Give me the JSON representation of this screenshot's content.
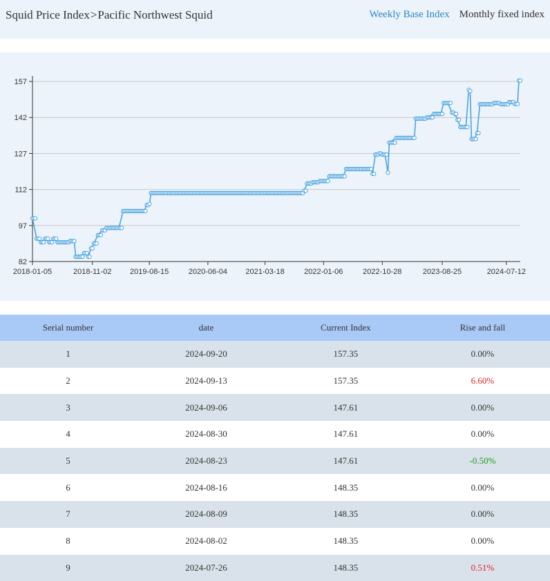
{
  "breadcrumb": {
    "root": "Squid Price Index",
    "separator": ">",
    "current": "Pacific Northwest Squid"
  },
  "tabs": [
    {
      "label": "Weekly Base Index",
      "active": true
    },
    {
      "label": "Monthly fixed index",
      "active": false
    }
  ],
  "colors": {
    "accent": "#2a87c8",
    "line": "#4aa3de",
    "up": "#e01e1e",
    "down": "#189a18",
    "header_bg": "#a9c9f7",
    "stripe": "#d9e2ea"
  },
  "chart_data": {
    "type": "line",
    "title": "",
    "xlabel": "",
    "ylabel": "",
    "ylim": [
      82,
      157
    ],
    "y_ticks": [
      "82",
      "97",
      "112",
      "127",
      "142",
      "157"
    ],
    "x_ticks": [
      "2018-01-05",
      "2018-11-02",
      "2019-08-15",
      "2020-06-04",
      "2021-03-18",
      "2022-01-06",
      "2022-10-28",
      "2023-08-25",
      "2024-07-12"
    ],
    "grid": true,
    "series": [
      {
        "points": [
          [
            "2018-01-05",
            100.0
          ],
          [
            "2018-01-26",
            91.5
          ],
          [
            "2018-02-16",
            90.0
          ],
          [
            "2018-03-09",
            91.5
          ],
          [
            "2018-03-30",
            90.0
          ],
          [
            "2018-04-20",
            91.5
          ],
          [
            "2018-05-11",
            90.0
          ],
          [
            "2018-06-01",
            90.0
          ],
          [
            "2018-06-22",
            90.0
          ],
          [
            "2018-07-13",
            90.5
          ],
          [
            "2018-08-03",
            90.5
          ],
          [
            "2018-08-10",
            84.0
          ],
          [
            "2018-08-31",
            84.0
          ],
          [
            "2018-09-21",
            85.5
          ],
          [
            "2018-10-12",
            84.0
          ],
          [
            "2018-10-26",
            87.5
          ],
          [
            "2018-11-09",
            89.5
          ],
          [
            "2018-11-30",
            93.0
          ],
          [
            "2018-12-21",
            95.0
          ],
          [
            "2019-01-11",
            96.0
          ],
          [
            "2019-02-01",
            96.0
          ],
          [
            "2019-02-22",
            96.0
          ],
          [
            "2019-03-15",
            96.0
          ],
          [
            "2019-04-05",
            103.0
          ],
          [
            "2019-05-10",
            103.0
          ],
          [
            "2019-06-14",
            103.0
          ],
          [
            "2019-07-19",
            103.0
          ],
          [
            "2019-08-02",
            105.5
          ],
          [
            "2019-08-16",
            106.0
          ],
          [
            "2019-08-23",
            110.5
          ],
          [
            "2020-03-06",
            110.5
          ],
          [
            "2020-10-09",
            110.5
          ],
          [
            "2021-05-14",
            110.5
          ],
          [
            "2021-09-17",
            110.5
          ],
          [
            "2021-10-01",
            111.5
          ],
          [
            "2021-10-15",
            114.5
          ],
          [
            "2021-11-12",
            115.0
          ],
          [
            "2021-12-17",
            115.5
          ],
          [
            "2022-01-21",
            115.5
          ],
          [
            "2022-02-04",
            117.5
          ],
          [
            "2022-03-11",
            117.5
          ],
          [
            "2022-04-15",
            117.5
          ],
          [
            "2022-04-29",
            120.5
          ],
          [
            "2022-06-17",
            120.5
          ],
          [
            "2022-08-05",
            120.5
          ],
          [
            "2022-09-02",
            120.5
          ],
          [
            "2022-09-09",
            118.5
          ],
          [
            "2022-09-23",
            126.5
          ],
          [
            "2022-10-14",
            127.0
          ],
          [
            "2022-10-28",
            126.5
          ],
          [
            "2022-11-11",
            126.5
          ],
          [
            "2022-11-25",
            119.0
          ],
          [
            "2022-12-02",
            131.5
          ],
          [
            "2023-01-06",
            133.5
          ],
          [
            "2023-02-10",
            133.5
          ],
          [
            "2023-03-17",
            133.5
          ],
          [
            "2023-04-07",
            133.5
          ],
          [
            "2023-04-14",
            141.5
          ],
          [
            "2023-05-19",
            141.5
          ],
          [
            "2023-06-09",
            142.0
          ],
          [
            "2023-07-14",
            143.5
          ],
          [
            "2023-08-18",
            143.5
          ],
          [
            "2023-09-01",
            148.0
          ],
          [
            "2023-09-22",
            148.0
          ],
          [
            "2023-10-13",
            144.0
          ],
          [
            "2023-10-27",
            143.5
          ],
          [
            "2023-11-10",
            141.0
          ],
          [
            "2023-11-24",
            138.0
          ],
          [
            "2023-12-22",
            138.0
          ],
          [
            "2024-01-05",
            153.5
          ],
          [
            "2024-01-12",
            153.0
          ],
          [
            "2024-01-19",
            133.0
          ],
          [
            "2024-02-02",
            133.0
          ],
          [
            "2024-02-16",
            135.5
          ],
          [
            "2024-03-01",
            147.5
          ],
          [
            "2024-04-05",
            147.5
          ],
          [
            "2024-05-10",
            148.0
          ],
          [
            "2024-06-14",
            147.5
          ],
          [
            "2024-07-26",
            148.35
          ],
          [
            "2024-08-16",
            148.35
          ],
          [
            "2024-08-23",
            147.61
          ],
          [
            "2024-09-06",
            147.61
          ],
          [
            "2024-09-13",
            157.35
          ],
          [
            "2024-09-20",
            157.35
          ]
        ]
      }
    ]
  },
  "table": {
    "headers": [
      "Serial number",
      "date",
      "Current Index",
      "Rise and fall"
    ],
    "rows": [
      {
        "serial": "1",
        "date": "2024-09-20",
        "index": "157.35",
        "change": "0.00%",
        "trend": "flat"
      },
      {
        "serial": "2",
        "date": "2024-09-13",
        "index": "157.35",
        "change": "6.60%",
        "trend": "up"
      },
      {
        "serial": "3",
        "date": "2024-09-06",
        "index": "147.61",
        "change": "0.00%",
        "trend": "flat"
      },
      {
        "serial": "4",
        "date": "2024-08-30",
        "index": "147.61",
        "change": "0.00%",
        "trend": "flat"
      },
      {
        "serial": "5",
        "date": "2024-08-23",
        "index": "147.61",
        "change": "-0.50%",
        "trend": "down"
      },
      {
        "serial": "6",
        "date": "2024-08-16",
        "index": "148.35",
        "change": "0.00%",
        "trend": "flat"
      },
      {
        "serial": "7",
        "date": "2024-08-09",
        "index": "148.35",
        "change": "0.00%",
        "trend": "flat"
      },
      {
        "serial": "8",
        "date": "2024-08-02",
        "index": "148.35",
        "change": "0.00%",
        "trend": "flat"
      },
      {
        "serial": "9",
        "date": "2024-07-26",
        "index": "148.35",
        "change": "0.51%",
        "trend": "up"
      }
    ]
  }
}
